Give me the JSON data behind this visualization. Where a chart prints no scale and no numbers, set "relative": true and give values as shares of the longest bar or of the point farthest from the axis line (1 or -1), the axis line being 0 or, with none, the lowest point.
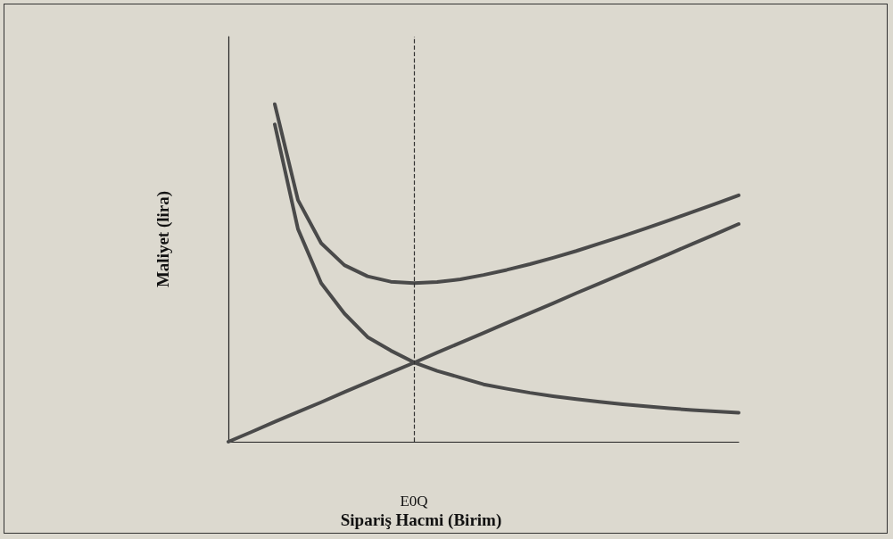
{
  "chart_data": {
    "type": "line",
    "relative": true,
    "xlabel": "Sipariş Hacmi (Birim)",
    "ylabel": "Maliyet (lira)",
    "categories": [
      null,
      null,
      null,
      null,
      null,
      null,
      null,
      null,
      null,
      null,
      null,
      null,
      null,
      null,
      null,
      null,
      null,
      null,
      null,
      null,
      null,
      null,
      null
    ],
    "series": [
      {
        "color": "#4a4a4a",
        "values": [
          null,
          null,
          1.0,
          0.716,
          0.588,
          0.523,
          0.49,
          0.474,
          0.47,
          0.473,
          0.481,
          0.494,
          0.509,
          0.526,
          0.545,
          0.565,
          0.587,
          0.609,
          0.632,
          0.656,
          0.68,
          0.705,
          0.73
        ]
      },
      {
        "color": "#4a4a4a",
        "values": [
          null,
          null,
          0.94,
          0.63,
          0.47,
          0.38,
          0.31,
          0.27,
          0.235,
          0.21,
          0.19,
          0.17,
          0.157,
          0.145,
          0.135,
          0.126,
          0.118,
          0.111,
          0.105,
          0.099,
          0.094,
          0.09,
          0.086
        ]
      },
      {
        "color": "#4a4a4a",
        "values": [
          0,
          0.029,
          0.059,
          0.088,
          0.117,
          0.147,
          0.176,
          0.205,
          0.234,
          0.264,
          0.293,
          0.322,
          0.352,
          0.381,
          0.41,
          0.44,
          0.469,
          0.498,
          0.527,
          0.556,
          0.586,
          0.615,
          0.645
        ]
      }
    ],
    "annotations": [
      "E0Q"
    ],
    "marker": "none",
    "line_style": "solid",
    "grid": false
  }
}
